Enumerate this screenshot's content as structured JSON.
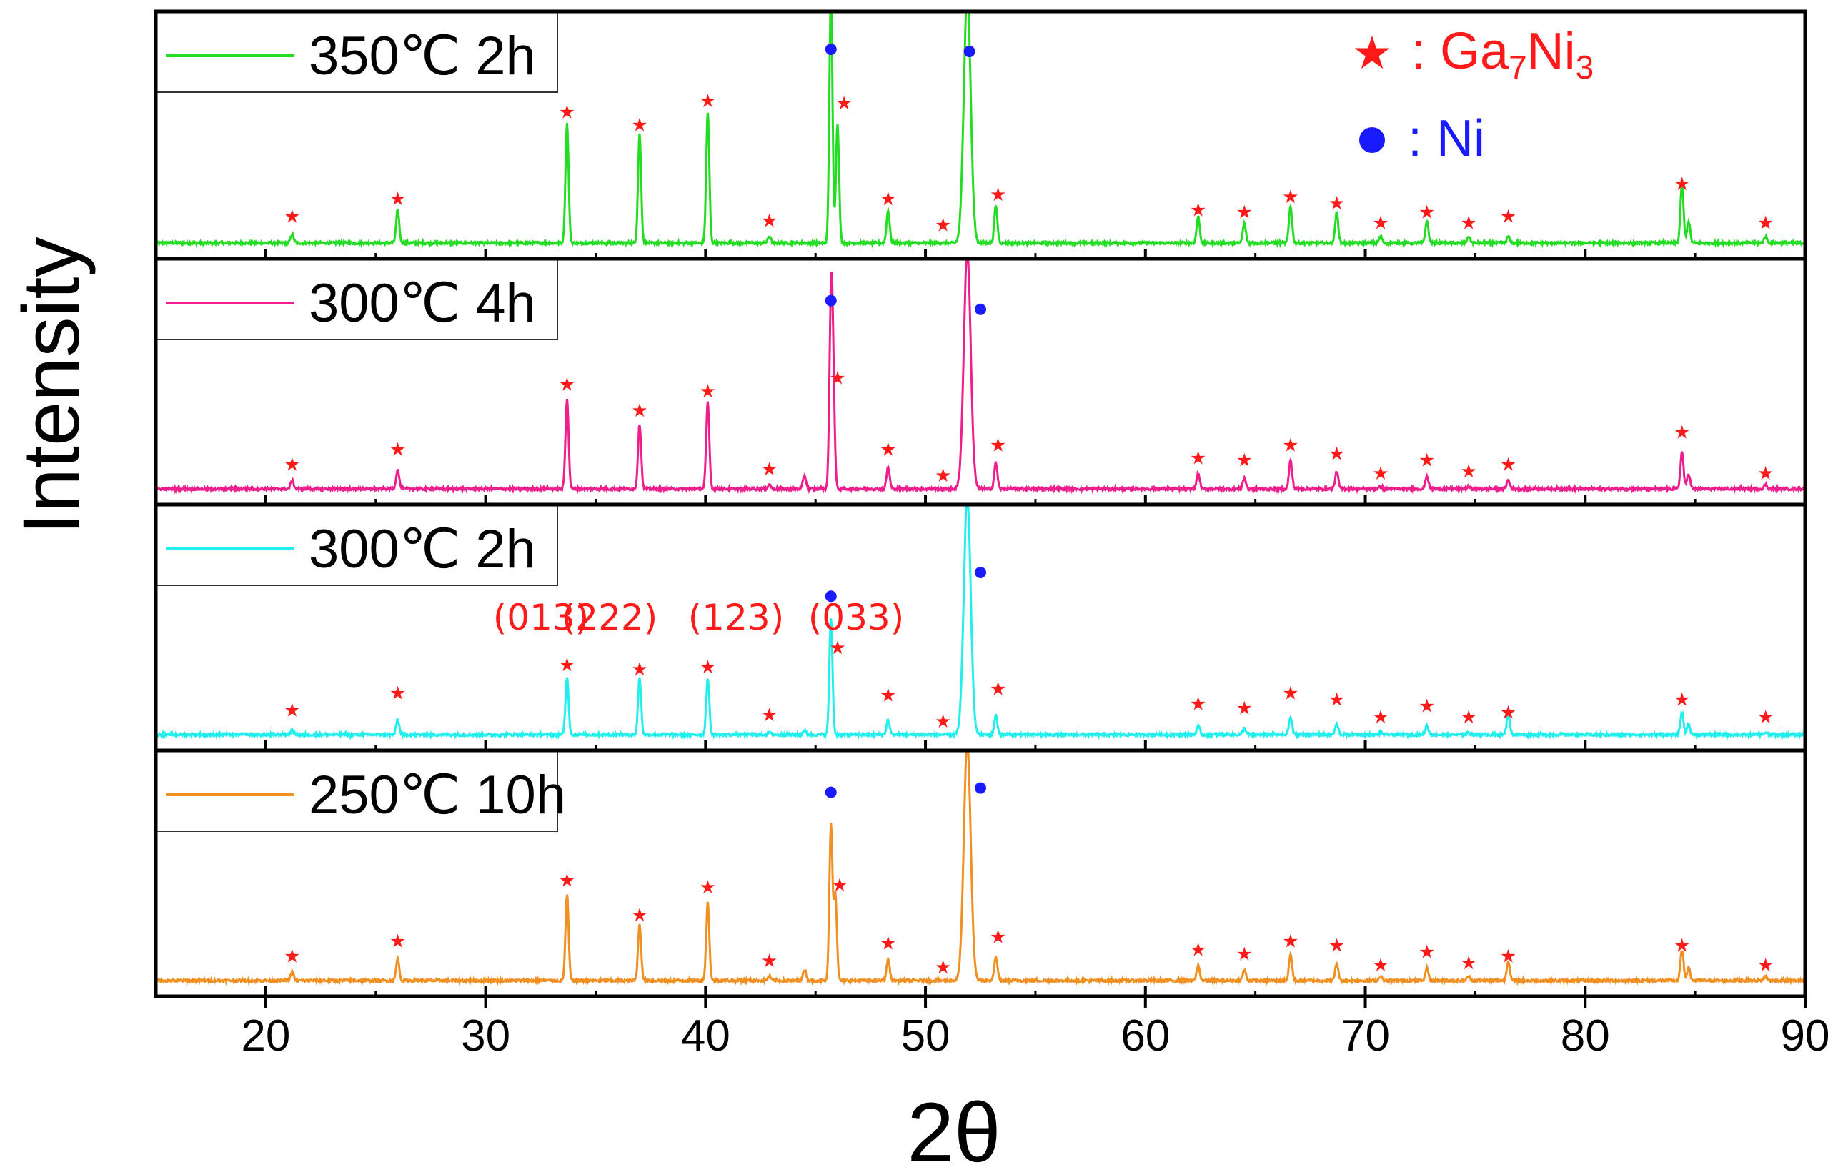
{
  "chart_data": {
    "type": "line",
    "layout": "stacked panels",
    "xlabel": "2θ",
    "ylabel": "Intensity",
    "xlim": [
      15,
      90
    ],
    "x_ticks": [
      "20",
      "30",
      "40",
      "50",
      "60",
      "70",
      "80",
      "90"
    ],
    "legend": {
      "star_label": ": Ga",
      "star_sub1": "7",
      "star_mid": "Ni",
      "star_sub2": "3",
      "dot_label": ": Ni"
    },
    "marker_colors": {
      "star": "#ff1a1a",
      "dot": "#1a1aff"
    },
    "panels": [
      {
        "name": "350℃ 2h",
        "label": "350℃ 2h",
        "color": "#22dd22",
        "baseline": 0.03,
        "peaks": [
          {
            "x": 21.2,
            "h": 0.04
          },
          {
            "x": 26.0,
            "h": 0.15
          },
          {
            "x": 33.7,
            "h": 0.55
          },
          {
            "x": 37.0,
            "h": 0.5
          },
          {
            "x": 40.1,
            "h": 0.6
          },
          {
            "x": 42.9,
            "h": 0.03
          },
          {
            "x": 45.7,
            "h": 1.15
          },
          {
            "x": 46.0,
            "h": 0.55
          },
          {
            "x": 48.3,
            "h": 0.15
          },
          {
            "x": 51.9,
            "h": 1.15
          },
          {
            "x": 53.2,
            "h": 0.17
          },
          {
            "x": 62.4,
            "h": 0.12
          },
          {
            "x": 64.5,
            "h": 0.09
          },
          {
            "x": 66.6,
            "h": 0.17
          },
          {
            "x": 68.7,
            "h": 0.14
          },
          {
            "x": 70.7,
            "h": 0.03
          },
          {
            "x": 72.8,
            "h": 0.1
          },
          {
            "x": 74.7,
            "h": 0.03
          },
          {
            "x": 76.5,
            "h": 0.03
          },
          {
            "x": 84.4,
            "h": 0.27
          },
          {
            "x": 84.7,
            "h": 0.1
          },
          {
            "x": 88.2,
            "h": 0.03
          }
        ],
        "stars": [
          {
            "x": 21.2,
            "y": 0.12
          },
          {
            "x": 26.0,
            "y": 0.2
          },
          {
            "x": 33.7,
            "y": 0.6
          },
          {
            "x": 37.0,
            "y": 0.54
          },
          {
            "x": 40.1,
            "y": 0.65
          },
          {
            "x": 42.9,
            "y": 0.1
          },
          {
            "x": 46.3,
            "y": 0.64
          },
          {
            "x": 48.3,
            "y": 0.2
          },
          {
            "x": 50.8,
            "y": 0.08
          },
          {
            "x": 53.3,
            "y": 0.22
          },
          {
            "x": 62.4,
            "y": 0.15
          },
          {
            "x": 64.5,
            "y": 0.14
          },
          {
            "x": 66.6,
            "y": 0.21
          },
          {
            "x": 68.7,
            "y": 0.18
          },
          {
            "x": 70.7,
            "y": 0.09
          },
          {
            "x": 72.8,
            "y": 0.14
          },
          {
            "x": 74.7,
            "y": 0.09
          },
          {
            "x": 76.5,
            "y": 0.12
          },
          {
            "x": 84.4,
            "y": 0.27
          },
          {
            "x": 88.2,
            "y": 0.09
          }
        ],
        "dots": [
          {
            "x": 45.7,
            "y": 0.89
          },
          {
            "x": 52.0,
            "y": 0.88
          }
        ]
      },
      {
        "name": "300℃ 4h",
        "label": "300℃ 4h",
        "color": "#ee1e8c",
        "baseline": 0.03,
        "peaks": [
          {
            "x": 21.2,
            "h": 0.04
          },
          {
            "x": 26.0,
            "h": 0.09
          },
          {
            "x": 33.7,
            "h": 0.42
          },
          {
            "x": 37.0,
            "h": 0.3
          },
          {
            "x": 40.1,
            "h": 0.4
          },
          {
            "x": 42.9,
            "h": 0.02
          },
          {
            "x": 44.5,
            "h": 0.06
          },
          {
            "x": 45.7,
            "h": 0.8
          },
          {
            "x": 45.8,
            "h": 0.45
          },
          {
            "x": 48.3,
            "h": 0.1
          },
          {
            "x": 51.9,
            "h": 1.1
          },
          {
            "x": 53.2,
            "h": 0.12
          },
          {
            "x": 62.4,
            "h": 0.07
          },
          {
            "x": 64.5,
            "h": 0.05
          },
          {
            "x": 66.6,
            "h": 0.13
          },
          {
            "x": 68.7,
            "h": 0.08
          },
          {
            "x": 70.7,
            "h": 0.01
          },
          {
            "x": 72.8,
            "h": 0.06
          },
          {
            "x": 74.7,
            "h": 0.01
          },
          {
            "x": 76.5,
            "h": 0.04
          },
          {
            "x": 84.4,
            "h": 0.17
          },
          {
            "x": 84.7,
            "h": 0.07
          },
          {
            "x": 88.2,
            "h": 0.02
          }
        ],
        "stars": [
          {
            "x": 21.2,
            "y": 0.11
          },
          {
            "x": 26.0,
            "y": 0.18
          },
          {
            "x": 33.7,
            "y": 0.48
          },
          {
            "x": 37.0,
            "y": 0.36
          },
          {
            "x": 40.1,
            "y": 0.45
          },
          {
            "x": 42.9,
            "y": 0.09
          },
          {
            "x": 46.0,
            "y": 0.51
          },
          {
            "x": 48.3,
            "y": 0.18
          },
          {
            "x": 50.8,
            "y": 0.06
          },
          {
            "x": 53.3,
            "y": 0.2
          },
          {
            "x": 62.4,
            "y": 0.14
          },
          {
            "x": 64.5,
            "y": 0.13
          },
          {
            "x": 66.6,
            "y": 0.2
          },
          {
            "x": 68.7,
            "y": 0.16
          },
          {
            "x": 70.7,
            "y": 0.07
          },
          {
            "x": 72.8,
            "y": 0.13
          },
          {
            "x": 74.7,
            "y": 0.08
          },
          {
            "x": 76.5,
            "y": 0.11
          },
          {
            "x": 84.4,
            "y": 0.26
          },
          {
            "x": 88.2,
            "y": 0.07
          }
        ],
        "dots": [
          {
            "x": 45.7,
            "y": 0.87
          },
          {
            "x": 52.5,
            "y": 0.83
          }
        ]
      },
      {
        "name": "300℃ 2h",
        "label": "300℃ 2h",
        "color": "#22eeee",
        "baseline": 0.03,
        "peaks": [
          {
            "x": 21.2,
            "h": 0.02
          },
          {
            "x": 26.0,
            "h": 0.07
          },
          {
            "x": 33.7,
            "h": 0.27
          },
          {
            "x": 37.0,
            "h": 0.26
          },
          {
            "x": 40.1,
            "h": 0.26
          },
          {
            "x": 42.9,
            "h": 0.01
          },
          {
            "x": 44.5,
            "h": 0.02
          },
          {
            "x": 45.7,
            "h": 0.54
          },
          {
            "x": 48.3,
            "h": 0.07
          },
          {
            "x": 51.9,
            "h": 1.1
          },
          {
            "x": 53.2,
            "h": 0.09
          },
          {
            "x": 62.4,
            "h": 0.04
          },
          {
            "x": 64.5,
            "h": 0.03
          },
          {
            "x": 66.6,
            "h": 0.08
          },
          {
            "x": 68.7,
            "h": 0.05
          },
          {
            "x": 70.7,
            "h": 0.01
          },
          {
            "x": 72.8,
            "h": 0.04
          },
          {
            "x": 74.7,
            "h": 0.01
          },
          {
            "x": 76.5,
            "h": 0.1
          },
          {
            "x": 84.4,
            "h": 0.1
          },
          {
            "x": 84.7,
            "h": 0.05
          },
          {
            "x": 88.2,
            "h": 0.01
          }
        ],
        "stars": [
          {
            "x": 21.2,
            "y": 0.11
          },
          {
            "x": 26.0,
            "y": 0.19
          },
          {
            "x": 33.7,
            "y": 0.32
          },
          {
            "x": 37.0,
            "y": 0.3
          },
          {
            "x": 40.1,
            "y": 0.31
          },
          {
            "x": 42.9,
            "y": 0.09
          },
          {
            "x": 46.0,
            "y": 0.4
          },
          {
            "x": 48.3,
            "y": 0.18
          },
          {
            "x": 50.8,
            "y": 0.06
          },
          {
            "x": 53.3,
            "y": 0.21
          },
          {
            "x": 62.4,
            "y": 0.14
          },
          {
            "x": 64.5,
            "y": 0.12
          },
          {
            "x": 66.6,
            "y": 0.19
          },
          {
            "x": 68.7,
            "y": 0.16
          },
          {
            "x": 70.7,
            "y": 0.08
          },
          {
            "x": 72.8,
            "y": 0.13
          },
          {
            "x": 74.7,
            "y": 0.08
          },
          {
            "x": 76.5,
            "y": 0.1
          },
          {
            "x": 84.4,
            "y": 0.16
          },
          {
            "x": 88.2,
            "y": 0.08
          }
        ],
        "dots": [
          {
            "x": 45.7,
            "y": 0.64
          },
          {
            "x": 52.5,
            "y": 0.75
          }
        ],
        "hkl_labels": [
          "(013)",
          "(222)",
          "(123)",
          "(033)"
        ]
      },
      {
        "name": "250℃ 10h",
        "label": "250℃ 10h",
        "color": "#f09022",
        "baseline": 0.03,
        "peaks": [
          {
            "x": 21.2,
            "h": 0.04
          },
          {
            "x": 26.0,
            "h": 0.1
          },
          {
            "x": 33.7,
            "h": 0.4
          },
          {
            "x": 37.0,
            "h": 0.26
          },
          {
            "x": 40.1,
            "h": 0.36
          },
          {
            "x": 42.9,
            "h": 0.02
          },
          {
            "x": 44.5,
            "h": 0.05
          },
          {
            "x": 45.7,
            "h": 0.72
          },
          {
            "x": 45.9,
            "h": 0.4
          },
          {
            "x": 48.3,
            "h": 0.1
          },
          {
            "x": 51.9,
            "h": 1.1
          },
          {
            "x": 53.2,
            "h": 0.11
          },
          {
            "x": 62.4,
            "h": 0.07
          },
          {
            "x": 64.5,
            "h": 0.05
          },
          {
            "x": 66.6,
            "h": 0.12
          },
          {
            "x": 68.7,
            "h": 0.08
          },
          {
            "x": 70.7,
            "h": 0.02
          },
          {
            "x": 72.8,
            "h": 0.06
          },
          {
            "x": 74.7,
            "h": 0.02
          },
          {
            "x": 76.5,
            "h": 0.09
          },
          {
            "x": 84.4,
            "h": 0.14
          },
          {
            "x": 84.7,
            "h": 0.06
          },
          {
            "x": 88.2,
            "h": 0.02
          }
        ],
        "stars": [
          {
            "x": 21.2,
            "y": 0.11
          },
          {
            "x": 26.0,
            "y": 0.18
          },
          {
            "x": 33.7,
            "y": 0.46
          },
          {
            "x": 37.0,
            "y": 0.3
          },
          {
            "x": 40.1,
            "y": 0.43
          },
          {
            "x": 42.9,
            "y": 0.09
          },
          {
            "x": 46.1,
            "y": 0.44
          },
          {
            "x": 48.3,
            "y": 0.17
          },
          {
            "x": 50.8,
            "y": 0.06
          },
          {
            "x": 53.3,
            "y": 0.2
          },
          {
            "x": 62.4,
            "y": 0.14
          },
          {
            "x": 64.5,
            "y": 0.12
          },
          {
            "x": 66.6,
            "y": 0.18
          },
          {
            "x": 68.7,
            "y": 0.16
          },
          {
            "x": 70.7,
            "y": 0.07
          },
          {
            "x": 72.8,
            "y": 0.13
          },
          {
            "x": 74.7,
            "y": 0.08
          },
          {
            "x": 76.5,
            "y": 0.11
          },
          {
            "x": 84.4,
            "y": 0.16
          },
          {
            "x": 88.2,
            "y": 0.07
          }
        ],
        "dots": [
          {
            "x": 45.7,
            "y": 0.87
          },
          {
            "x": 52.5,
            "y": 0.89
          }
        ]
      }
    ]
  }
}
